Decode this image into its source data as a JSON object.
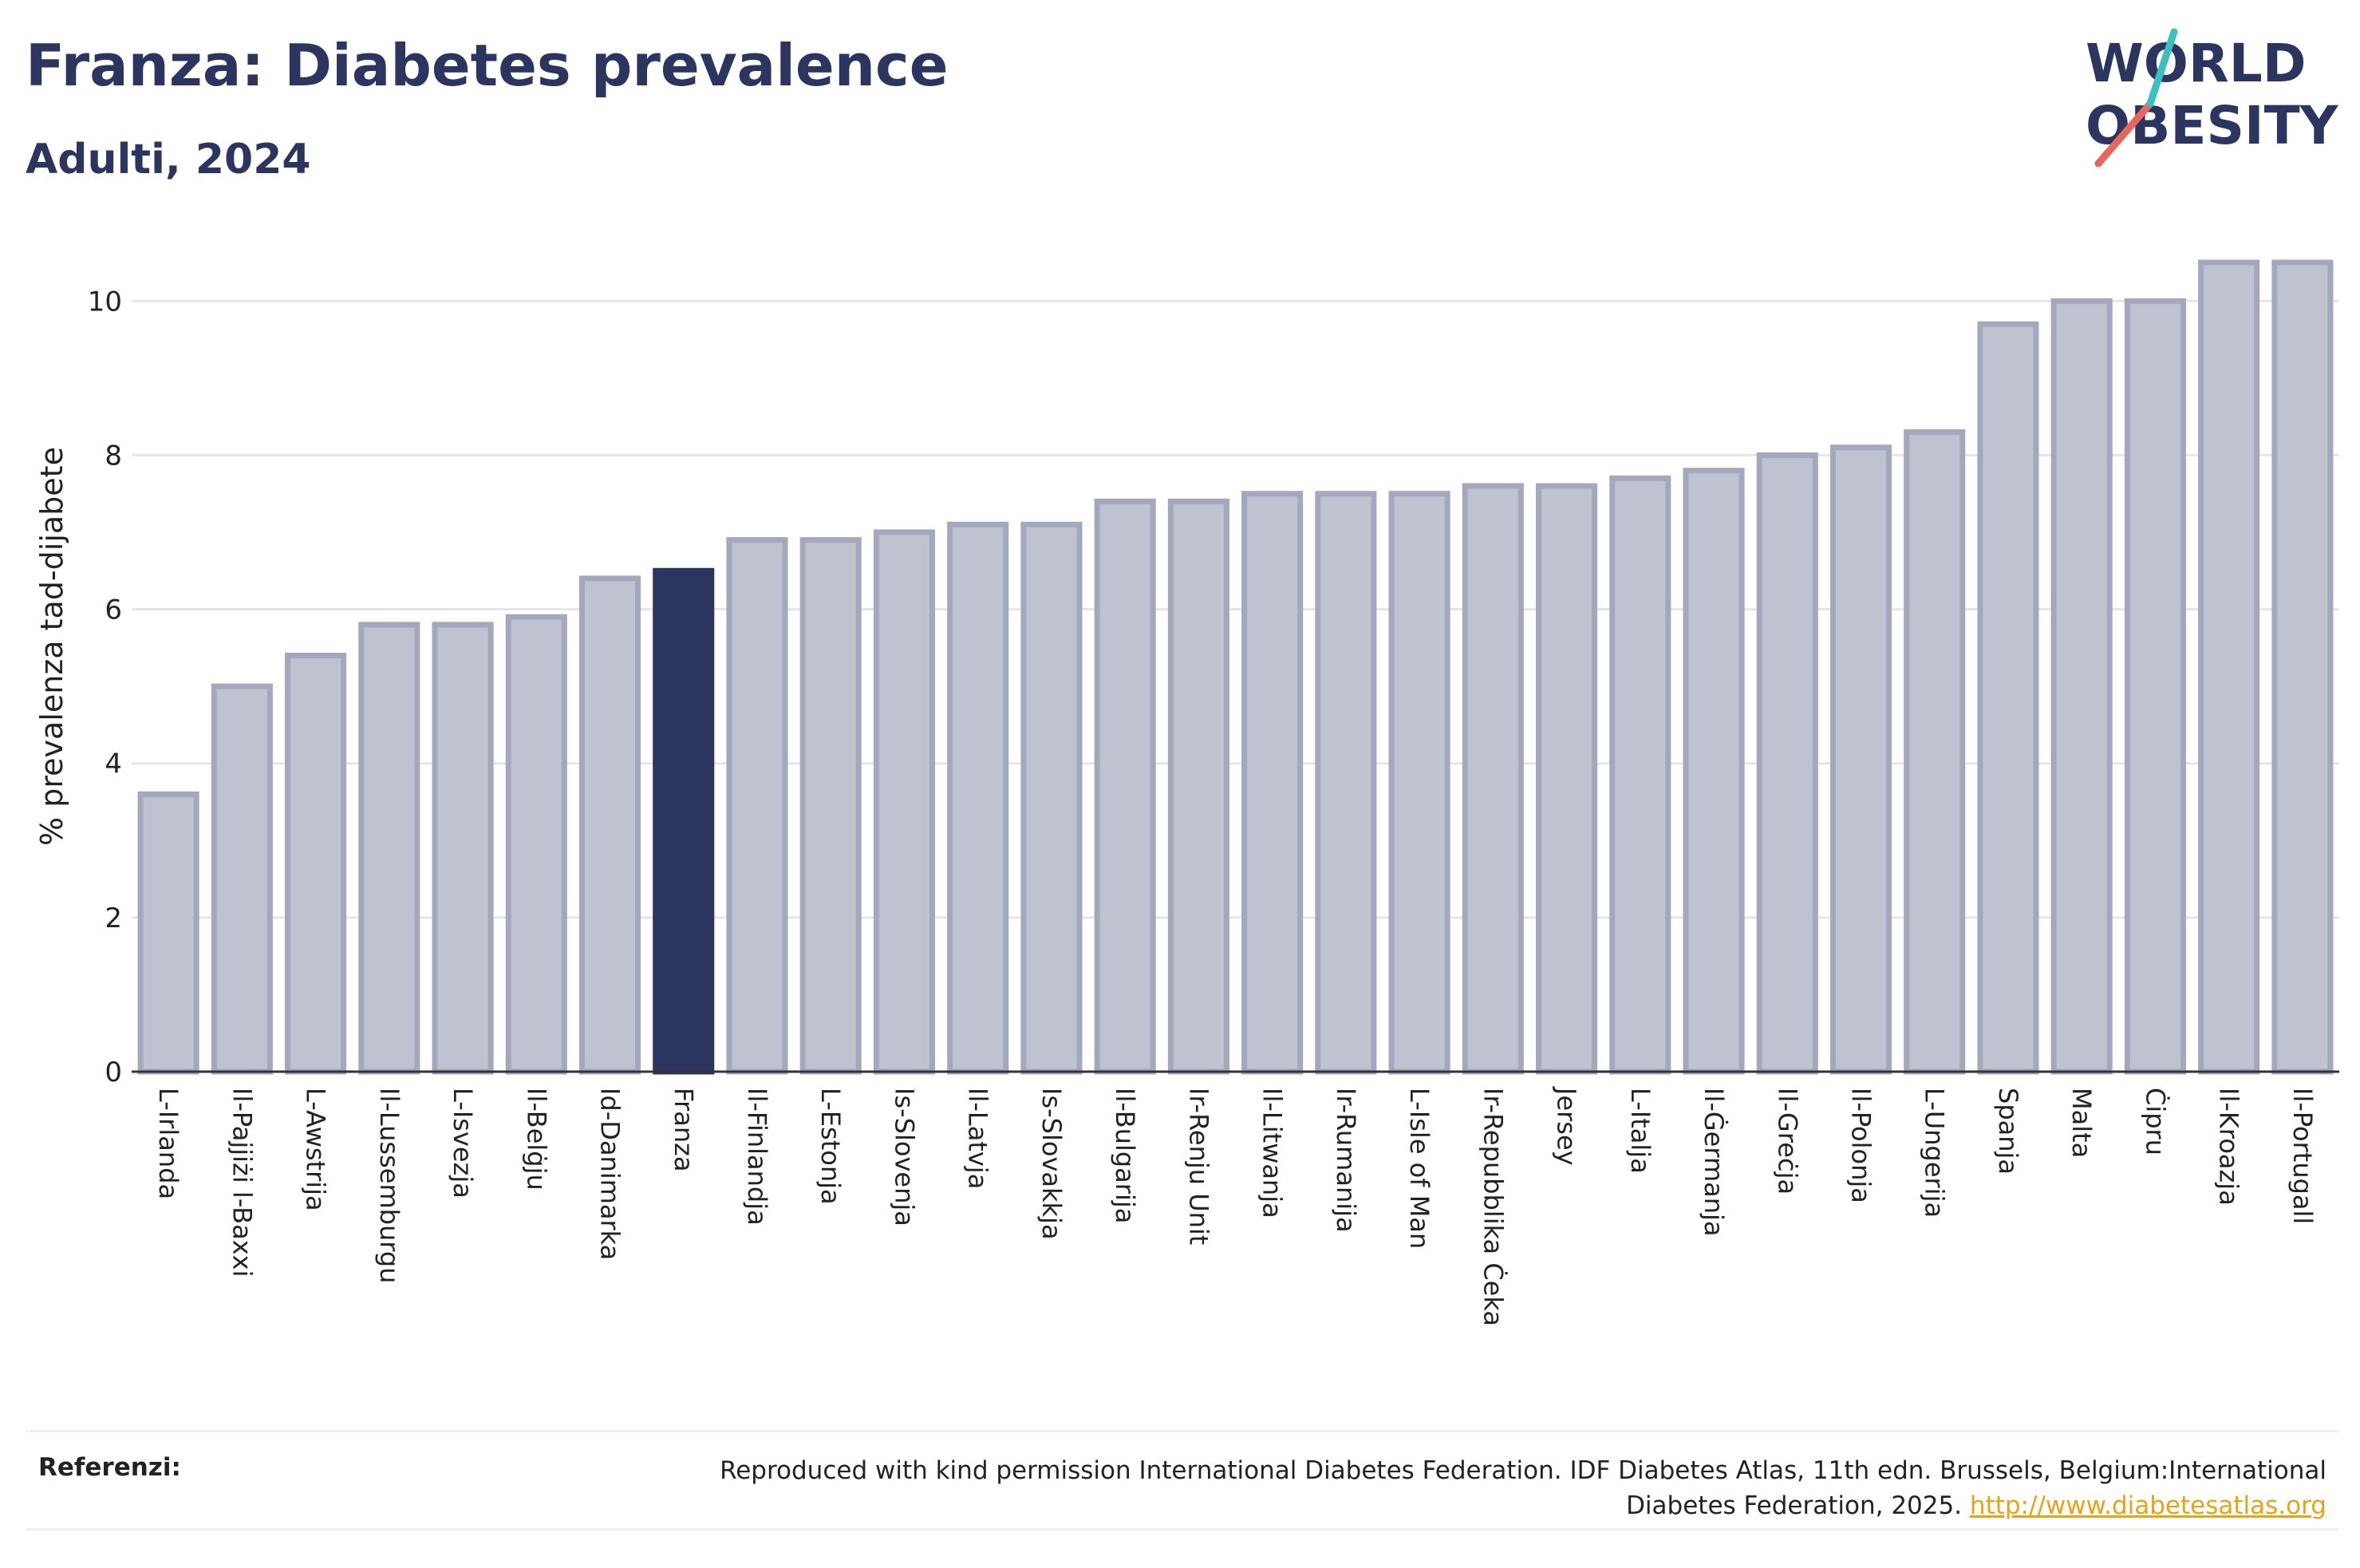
{
  "header": {
    "title": "Franza: Diabetes prevalence",
    "subtitle": "Adulti, 2024"
  },
  "logo": {
    "line1": "W",
    "line1b": "RLD",
    "line2": "BESITY",
    "slash_color": "#e8675a",
    "accent_color": "#3bbfbf"
  },
  "colors": {
    "bar": "#bfc3d0",
    "bar_border": "#a3a8bc",
    "highlight": "#2b3560",
    "grid": "#e6e6e6"
  },
  "chart_data": {
    "type": "bar",
    "title": "Franza: Diabetes prevalence",
    "subtitle": "Adulti, 2024",
    "ylabel": "% prevalenza tad-dijabete",
    "xlabel": "",
    "ylim": [
      0,
      10.8
    ],
    "yticks": [
      0,
      2,
      4,
      6,
      8,
      10
    ],
    "grid": true,
    "highlight": "Franza",
    "categories": [
      "L-Irlanda",
      "Il-Pajjiżi l-Baxxi",
      "L-Awstrija",
      "Il-Lussemburgu",
      "L-Isvezja",
      "Il-Belġju",
      "Id-Danimarka",
      "Franza",
      "Il-Finlandja",
      "L-Estonja",
      "Is-Slovenja",
      "Il-Latvja",
      "Is-Slovakkja",
      "Il-Bulgarija",
      "Ir-Renju Unit",
      "Il-Litwanja",
      "Ir-Rumanija",
      "L-Isle of Man",
      "Ir-Repubblika Ċeka",
      "Jersey",
      "L-Italja",
      "Il-Ġermanja",
      "Il-Greċja",
      "Il-Polonja",
      "L-Ungerija",
      "Spanja",
      "Malta",
      "Ċipru",
      "Il-Kroazja",
      "Il-Portugall"
    ],
    "values": [
      3.6,
      5.0,
      5.4,
      5.8,
      5.8,
      5.9,
      6.4,
      6.5,
      6.9,
      6.9,
      7.0,
      7.1,
      7.1,
      7.4,
      7.4,
      7.5,
      7.5,
      7.5,
      7.6,
      7.6,
      7.7,
      7.8,
      8.0,
      8.1,
      8.3,
      9.7,
      10.0,
      10.0,
      10.5,
      10.5
    ]
  },
  "references": {
    "label": "Referenzi:",
    "text": "Reproduced with kind permission International Diabetes Federation. IDF Diabetes Atlas, 11th edn. Brussels, Belgium:International Diabetes Federation, 2025.",
    "link": "http://www.diabetesatlas.org"
  }
}
